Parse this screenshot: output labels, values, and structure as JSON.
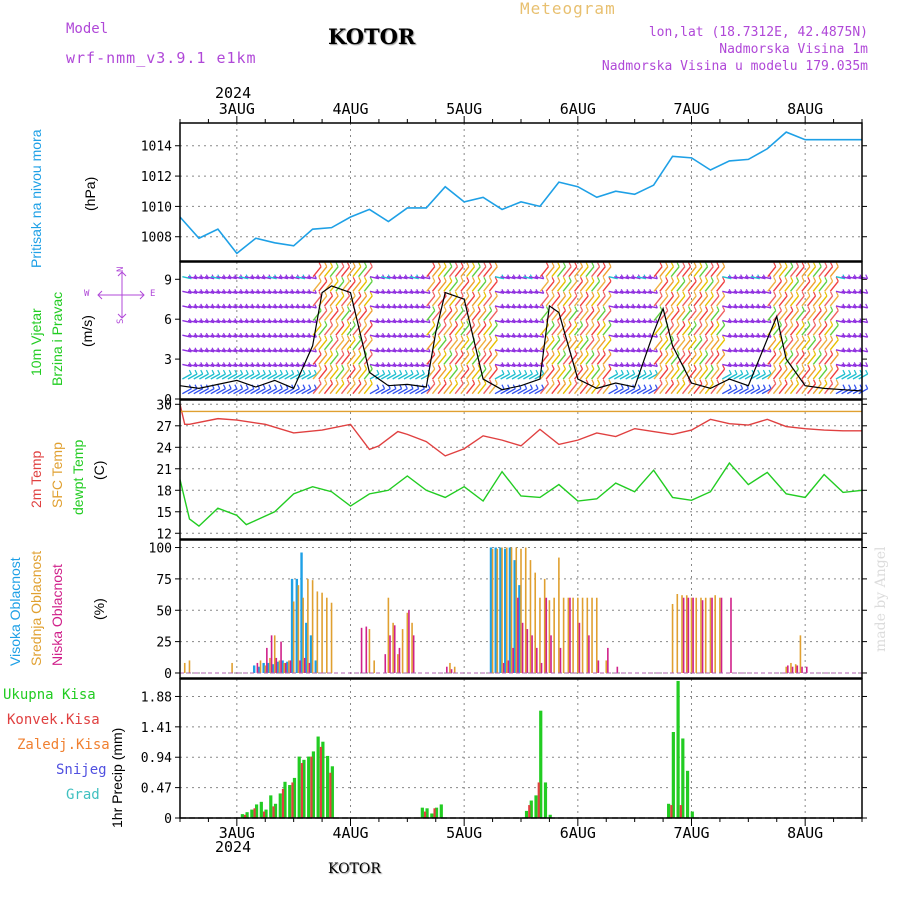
{
  "header": {
    "model_label": "Model",
    "model_value": "wrf-nmm_v3.9.1 e1km",
    "city": "KOTOR",
    "meteogram_label": "Meteogram",
    "lonlat": "lon,lat (18.7312E, 42.4875N)",
    "elevation": "Nadmorska Visina 1m",
    "model_elevation": "Nadmorska Visina u modelu 179.035m",
    "year": "2024",
    "footer_city": "KOTOR",
    "watermark": "made by Angel"
  },
  "time_axis": {
    "labels": [
      "3AUG",
      "4AUG",
      "5AUG",
      "6AUG",
      "7AUG",
      "8AUG"
    ],
    "year": "2024"
  },
  "colors": {
    "pressure": "#1ea0e6",
    "wind_label": "#22cc22",
    "temp2m": "#e04040",
    "sfc": "#e0a030",
    "dewpt": "#22cc22",
    "cloud_high": "#1ea0e6",
    "cloud_mid": "#e0a030",
    "cloud_low": "#d0208a",
    "precip_total": "#22cc22",
    "precip_conv": "#e04040",
    "precip_frz": "#f08030",
    "precip_snow": "#5050e0",
    "precip_graup": "#40c0c0",
    "compass": "#b048d8"
  },
  "compass": {
    "n": "N",
    "s": "S",
    "w": "W",
    "e": "E"
  },
  "panels": {
    "pressure": {
      "label": "Pritisak na nivou mora",
      "unit": "(hPa)"
    },
    "wind": {
      "label1": "10m Vjetar",
      "label2": "Brzina i Pravac",
      "unit": "(m/s)"
    },
    "temp": {
      "label1": "2m Temp",
      "label2": "SFC Temp",
      "label3": "dewpt Temp",
      "unit": "(C)"
    },
    "cloud": {
      "label1": "Visoka Oblacnost",
      "label2": "Srednja Oblacnost",
      "label3": "Niska Oblacnost",
      "unit": "(%)"
    },
    "precip": {
      "labels": [
        "Ukupna Kisa",
        "Konvek.Kisa",
        "Zaledj.Kisa",
        "Snijeg",
        "Grad"
      ],
      "unit": "1hr Precip (mm)"
    }
  },
  "chart_data": [
    {
      "type": "line",
      "name_panel": "pressure",
      "x_unit": "hours from 2 AUG 12:00",
      "x": [
        0,
        4,
        8,
        12,
        16,
        20,
        24,
        28,
        32,
        36,
        40,
        44,
        48,
        52,
        56,
        60,
        64,
        68,
        72,
        76,
        80,
        84,
        88,
        92,
        96,
        100,
        104,
        108,
        112,
        116,
        120,
        124,
        128,
        132,
        136,
        140,
        144
      ],
      "values": [
        1009.3,
        1007.9,
        1008.5,
        1006.9,
        1007.9,
        1007.6,
        1007.4,
        1008.5,
        1008.6,
        1009.3,
        1009.8,
        1009.0,
        1009.9,
        1009.9,
        1011.3,
        1010.3,
        1010.6,
        1009.8,
        1010.3,
        1010.0,
        1011.6,
        1011.3,
        1010.6,
        1011.0,
        1010.8,
        1011.4,
        1013.3,
        1013.2,
        1012.4,
        1013.0,
        1013.1,
        1013.8,
        1014.9,
        1014.4,
        1014.4,
        1014.4,
        1014.4
      ],
      "yticks": [
        1008,
        1010,
        1012,
        1014
      ],
      "ylim": [
        1006.4,
        1015.5
      ]
    },
    {
      "type": "line",
      "name_panel": "wind",
      "x": [
        0,
        4,
        8,
        12,
        16,
        20,
        24,
        28,
        30,
        32,
        36,
        40,
        44,
        48,
        52,
        54,
        56,
        60,
        64,
        68,
        72,
        76,
        78,
        80,
        84,
        88,
        92,
        96,
        100,
        102,
        104,
        108,
        112,
        116,
        120,
        124,
        126,
        128,
        132,
        136,
        140,
        144
      ],
      "values": [
        1.0,
        0.8,
        1.1,
        1.4,
        0.9,
        1.4,
        0.8,
        4.0,
        8.0,
        8.5,
        8.0,
        2.0,
        1.0,
        1.1,
        0.9,
        5.0,
        8.0,
        7.5,
        1.5,
        0.7,
        1.0,
        1.5,
        7.0,
        6.5,
        1.5,
        0.8,
        1.2,
        0.9,
        5.0,
        6.8,
        4.0,
        1.2,
        0.8,
        1.5,
        1.0,
        4.5,
        6.2,
        3.0,
        1.0,
        0.8,
        0.7,
        0.6
      ],
      "yticks": [
        0,
        3,
        6,
        9
      ],
      "ylim": [
        0,
        10.3
      ]
    },
    {
      "type": "line",
      "name_panel": "temperature",
      "series": [
        {
          "name": "2m Temp",
          "x": [
            0,
            1,
            2,
            8,
            12,
            18,
            24,
            30,
            36,
            40,
            42,
            46,
            48,
            52,
            56,
            60,
            64,
            68,
            72,
            76,
            80,
            84,
            88,
            92,
            96,
            100,
            104,
            108,
            112,
            116,
            120,
            124,
            128,
            132,
            136,
            140,
            144
          ],
          "values": [
            30,
            27.2,
            27.2,
            28.0,
            27.8,
            27.2,
            26.0,
            26.4,
            27.2,
            23.7,
            24.2,
            26.2,
            25.8,
            24.8,
            22.8,
            23.8,
            25.6,
            25.0,
            24.2,
            26.5,
            24.4,
            25.0,
            26.0,
            25.5,
            26.6,
            26.2,
            25.8,
            26.4,
            27.9,
            27.3,
            27.1,
            27.9,
            26.9,
            26.6,
            26.4,
            26.3,
            26.3
          ]
        },
        {
          "name": "SFC Temp",
          "x": [
            0,
            144
          ],
          "values": [
            29.0,
            29.0
          ]
        },
        {
          "name": "dewpt Temp",
          "x": [
            0,
            2,
            4,
            8,
            12,
            14,
            16,
            20,
            24,
            28,
            32,
            36,
            40,
            44,
            48,
            52,
            56,
            60,
            64,
            68,
            72,
            76,
            80,
            84,
            88,
            92,
            96,
            100,
            104,
            108,
            112,
            116,
            120,
            124,
            128,
            132,
            136,
            140,
            144
          ],
          "values": [
            19.5,
            14.0,
            13.0,
            15.5,
            14.5,
            13.2,
            13.8,
            15.0,
            17.5,
            18.5,
            17.8,
            15.8,
            17.5,
            18.0,
            20.0,
            18.0,
            17.0,
            18.5,
            16.5,
            20.6,
            17.2,
            17.0,
            18.8,
            16.5,
            16.8,
            19.0,
            17.8,
            20.8,
            17.0,
            16.6,
            17.8,
            21.8,
            18.8,
            20.5,
            17.5,
            17.0,
            20.2,
            17.7,
            18.0
          ]
        }
      ],
      "yticks": [
        12,
        15,
        18,
        21,
        24,
        27,
        30
      ],
      "ylim": [
        11.2,
        30.6
      ]
    },
    {
      "type": "bar",
      "name_panel": "cloud",
      "series": [
        {
          "name": "Visoka Oblacnost",
          "x": [
            16,
            17,
            18,
            19,
            20,
            21,
            22,
            23,
            24,
            25,
            26,
            27,
            28,
            29,
            66,
            67,
            68,
            69,
            70,
            71,
            72
          ],
          "values": [
            6,
            5,
            8,
            8,
            7,
            9,
            10,
            9,
            75,
            75,
            96,
            40,
            30,
            10,
            100,
            100,
            100,
            99,
            100,
            90,
            70
          ]
        },
        {
          "name": "Srednja Oblacnost",
          "x": [
            1,
            2,
            11,
            17,
            18,
            19,
            20,
            21,
            22,
            23,
            24,
            25,
            26,
            27,
            28,
            29,
            30,
            31,
            32,
            40,
            41,
            44,
            45,
            46,
            47,
            48,
            49,
            57,
            58,
            66,
            67,
            68,
            69,
            70,
            71,
            72,
            73,
            74,
            75,
            76,
            77,
            78,
            79,
            80,
            81,
            82,
            83,
            84,
            85,
            86,
            87,
            88,
            90,
            104,
            105,
            106,
            107,
            108,
            109,
            110,
            111,
            112,
            113,
            114,
            128,
            129,
            130,
            131
          ],
          "values": [
            8,
            10,
            8,
            10,
            6,
            12,
            30,
            10,
            8,
            10,
            57,
            70,
            60,
            75,
            74,
            65,
            64,
            60,
            56,
            35,
            10,
            60,
            40,
            15,
            35,
            48,
            40,
            8,
            5,
            99,
            99,
            100,
            100,
            100,
            100,
            99,
            100,
            90,
            80,
            60,
            75,
            58,
            60,
            92,
            60,
            60,
            60,
            60,
            60,
            60,
            60,
            60,
            10,
            55,
            63,
            62,
            62,
            60,
            60,
            60,
            60,
            60,
            62,
            60,
            5,
            8,
            7,
            30
          ]
        },
        {
          "name": "Niska Oblacnost",
          "x": [
            16,
            18,
            19,
            20,
            21,
            22,
            23,
            25,
            26,
            27,
            38,
            39,
            43,
            44,
            45,
            46,
            48,
            49,
            56,
            57,
            68,
            69,
            70,
            71,
            72,
            73,
            74,
            75,
            76,
            77,
            78,
            80,
            82,
            84,
            86,
            88,
            90,
            92,
            106,
            107,
            108,
            110,
            112,
            114,
            116,
            128,
            129,
            130,
            131,
            132,
            144
          ],
          "values": [
            8,
            20,
            30,
            12,
            25,
            8,
            10,
            10,
            12,
            8,
            36,
            37,
            15,
            30,
            38,
            20,
            50,
            30,
            5,
            3,
            8,
            10,
            20,
            60,
            40,
            35,
            30,
            20,
            8,
            60,
            30,
            20,
            60,
            40,
            30,
            10,
            20,
            5,
            60,
            60,
            60,
            58,
            60,
            60,
            60,
            6,
            5,
            6,
            5,
            5,
            0
          ]
        }
      ],
      "yticks": [
        0,
        25,
        50,
        75,
        100
      ],
      "ylim": [
        -4,
        106
      ]
    },
    {
      "type": "bar",
      "name_panel": "precipitation",
      "series": [
        {
          "name": "Ukupna Kisa",
          "x": [
            13,
            14,
            15,
            16,
            17,
            18,
            19,
            20,
            21,
            22,
            23,
            24,
            25,
            26,
            27,
            28,
            29,
            30,
            31,
            32,
            51,
            52,
            53,
            54,
            55,
            73,
            74,
            75,
            76,
            77,
            78,
            103,
            104,
            105,
            106,
            107,
            108
          ],
          "values": [
            0.06,
            0.09,
            0.13,
            0.21,
            0.25,
            0.13,
            0.35,
            0.22,
            0.38,
            0.56,
            0.51,
            0.62,
            0.95,
            0.9,
            0.95,
            1.03,
            1.26,
            1.18,
            0.96,
            0.8,
            0.16,
            0.15,
            0.07,
            0.16,
            0.21,
            0.11,
            0.27,
            0.35,
            1.66,
            0.55,
            0.05,
            0.22,
            1.33,
            2.12,
            1.23,
            0.73,
            0.1
          ]
        },
        {
          "name": "Konvek.Kisa",
          "x": [
            14,
            16,
            18,
            20,
            22,
            24,
            26,
            28,
            30,
            32,
            52,
            54,
            74,
            76,
            104,
            106
          ],
          "values": [
            0.05,
            0.15,
            0.1,
            0.18,
            0.45,
            0.55,
            0.85,
            0.95,
            1.1,
            0.7,
            0.1,
            0.15,
            0.2,
            0.55,
            0.2,
            0.2
          ]
        }
      ],
      "yticks": [
        0,
        0.47,
        0.94,
        1.41,
        1.88
      ],
      "ylim": [
        0,
        2.15
      ]
    }
  ]
}
